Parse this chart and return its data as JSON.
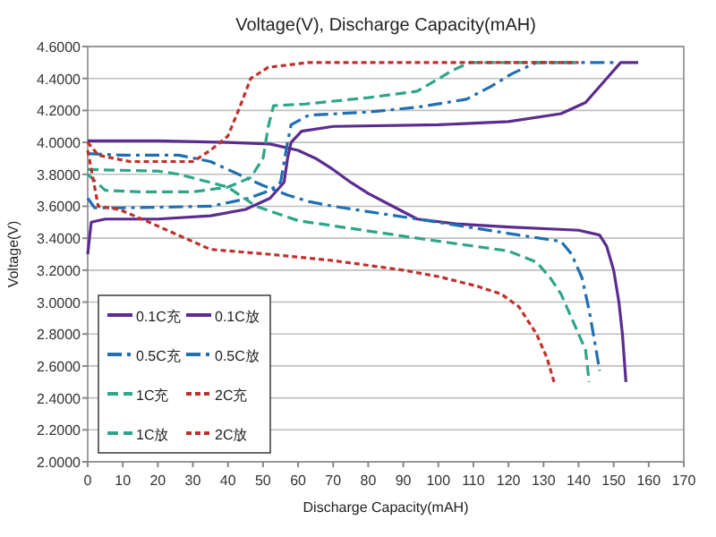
{
  "chart_data": {
    "type": "line",
    "title": "Voltage(V),  Discharge Capacity(mAH)",
    "xlabel": "Discharge Capacity(mAH)",
    "ylabel": "Voltage(V)",
    "xlim": [
      0,
      170
    ],
    "xticks": [
      0,
      10,
      20,
      30,
      40,
      50,
      60,
      70,
      80,
      90,
      100,
      110,
      120,
      130,
      140,
      150,
      160,
      170
    ],
    "ylim": [
      2,
      4.6
    ],
    "yticks": [
      {
        "value": 2,
        "label": "2.0000"
      },
      {
        "value": 2.2,
        "label": "2.2000"
      },
      {
        "value": 2.4,
        "label": "2.4000"
      },
      {
        "value": 2.6,
        "label": "2.6000"
      },
      {
        "value": 2.8,
        "label": "2.8000"
      },
      {
        "value": 3,
        "label": "3.0000"
      },
      {
        "value": 3.2,
        "label": "3.2000"
      },
      {
        "value": 3.4,
        "label": "3.4000"
      },
      {
        "value": 3.6,
        "label": "3.6000"
      },
      {
        "value": 3.8,
        "label": "3.8000"
      },
      {
        "value": 4,
        "label": "4.0000"
      },
      {
        "value": 4.2,
        "label": "4.2000"
      },
      {
        "value": 4.4,
        "label": "4.4000"
      },
      {
        "value": 4.6,
        "label": "4.6000"
      }
    ],
    "grid": "y",
    "legend": "bottom left",
    "marker": "none",
    "series": [
      {
        "name": "0.1C充",
        "color": "#5b2c8f",
        "line_style": "solid",
        "x": [
          0,
          1,
          5,
          20,
          35,
          45,
          52,
          56,
          57,
          58,
          61,
          70,
          100,
          120,
          135,
          142,
          148,
          152,
          157
        ],
        "values": [
          3.3,
          3.5,
          3.52,
          3.52,
          3.54,
          3.58,
          3.65,
          3.75,
          3.9,
          4.0,
          4.07,
          4.1,
          4.11,
          4.13,
          4.18,
          4.25,
          4.4,
          4.5,
          4.5
        ]
      },
      {
        "name": "0.1C放",
        "color": "#5b2c8f",
        "line_style": "solid",
        "x": [
          0,
          20,
          40,
          52,
          60,
          65,
          70,
          75,
          80,
          87,
          94,
          105,
          120,
          140,
          146,
          148,
          150,
          151.5,
          152.5,
          153.5
        ],
        "values": [
          4.01,
          4.01,
          4.0,
          3.99,
          3.95,
          3.9,
          3.83,
          3.75,
          3.68,
          3.6,
          3.52,
          3.49,
          3.47,
          3.45,
          3.42,
          3.35,
          3.2,
          3.0,
          2.8,
          2.5
        ]
      },
      {
        "name": "0.5C充",
        "color": "#1f6fb2",
        "line_style": "dashdot",
        "x": [
          0,
          2,
          10,
          35,
          46,
          52,
          55,
          57,
          58,
          63,
          80,
          94,
          108,
          115,
          121,
          128,
          150
        ],
        "values": [
          3.65,
          3.59,
          3.59,
          3.6,
          3.65,
          3.7,
          3.75,
          4.0,
          4.11,
          4.17,
          4.19,
          4.22,
          4.27,
          4.35,
          4.43,
          4.5,
          4.5
        ]
      },
      {
        "name": "0.5C放",
        "color": "#1f6fb2",
        "line_style": "dashdot",
        "x": [
          0,
          10,
          26,
          35,
          43,
          50,
          57,
          63,
          70,
          94,
          120,
          135,
          138,
          141,
          143,
          145,
          146
        ],
        "values": [
          3.93,
          3.92,
          3.92,
          3.88,
          3.8,
          3.73,
          3.67,
          3.63,
          3.6,
          3.52,
          3.43,
          3.38,
          3.3,
          3.15,
          2.95,
          2.7,
          2.57
        ]
      },
      {
        "name": "1C充",
        "color": "#2ea58a",
        "line_style": "dashed",
        "x": [
          0,
          5,
          15,
          30,
          40,
          46.5,
          50,
          51.5,
          53,
          62,
          80,
          94,
          104,
          109,
          140
        ],
        "values": [
          3.8,
          3.7,
          3.69,
          3.69,
          3.72,
          3.78,
          3.9,
          4.1,
          4.23,
          4.24,
          4.28,
          4.32,
          4.45,
          4.5,
          4.5
        ]
      },
      {
        "name": "2C充",
        "color": "#c0302a",
        "line_style": "dotted",
        "x": [
          0,
          3,
          12,
          30,
          35,
          40,
          43,
          46.5,
          51.5,
          63,
          140
        ],
        "values": [
          4.0,
          3.92,
          3.88,
          3.88,
          3.95,
          4.04,
          4.2,
          4.4,
          4.47,
          4.5,
          4.5
        ]
      },
      {
        "name": "1C放",
        "color": "#2ea58a",
        "line_style": "dashed",
        "x": [
          0,
          20,
          26,
          40,
          48,
          60,
          94,
          120,
          128,
          132,
          135,
          138,
          142,
          143
        ],
        "values": [
          3.83,
          3.82,
          3.8,
          3.72,
          3.6,
          3.51,
          3.4,
          3.32,
          3.25,
          3.15,
          3.05,
          2.9,
          2.7,
          2.5
        ]
      },
      {
        "name": "2C放",
        "color": "#c0302a",
        "line_style": "dotted",
        "x": [
          0,
          3,
          9,
          17.5,
          35,
          51.5,
          70,
          90,
          100,
          111,
          118,
          123,
          128,
          131,
          133
        ],
        "values": [
          3.95,
          3.6,
          3.58,
          3.5,
          3.33,
          3.3,
          3.26,
          3.2,
          3.16,
          3.1,
          3.05,
          2.97,
          2.8,
          2.65,
          2.5
        ]
      }
    ]
  }
}
